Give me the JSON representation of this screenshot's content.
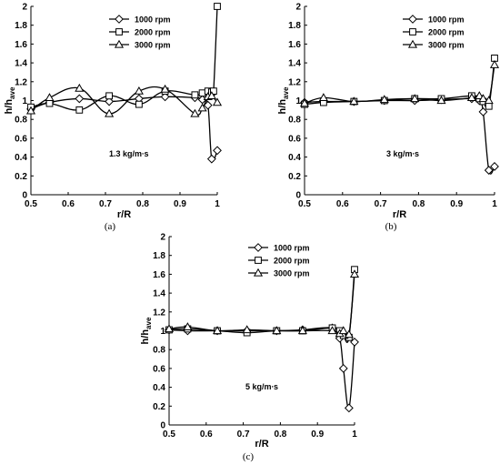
{
  "chart_data": [
    {
      "type": "line",
      "panel_label": "(a)",
      "annotation": "1.3 kg/m∙s",
      "xlabel": "r/R",
      "ylabel_main": "h/h",
      "ylabel_sub": "ave",
      "xlim": [
        0.5,
        1.0
      ],
      "ylim": [
        0,
        2
      ],
      "x_ticks": [
        "0.5",
        "0.6",
        "0.7",
        "0.8",
        "0.9",
        "1"
      ],
      "y_ticks": [
        "0",
        "0.2",
        "0.4",
        "0.6",
        "0.8",
        "1",
        "1.2",
        "1.4",
        "1.6",
        "1.8",
        "2"
      ],
      "legend_position": "top-right",
      "series": [
        {
          "name": "1000 rpm",
          "marker": "diamond",
          "x": [
            0.5,
            0.55,
            0.63,
            0.71,
            0.79,
            0.86,
            0.94,
            0.96,
            0.975,
            0.985,
            1.0
          ],
          "y": [
            0.91,
            0.98,
            1.02,
            0.99,
            1.02,
            1.04,
            1.03,
            1.01,
            0.95,
            0.38,
            0.47
          ]
        },
        {
          "name": "2000 rpm",
          "marker": "square",
          "x": [
            0.5,
            0.55,
            0.63,
            0.71,
            0.79,
            0.86,
            0.94,
            0.96,
            0.975,
            0.985,
            0.99,
            1.0
          ],
          "y": [
            0.93,
            0.97,
            0.9,
            1.05,
            0.96,
            1.1,
            1.06,
            1.08,
            1.1,
            1.09,
            1.1,
            2.0
          ]
        },
        {
          "name": "3000 rpm",
          "marker": "triangle",
          "x": [
            0.5,
            0.55,
            0.63,
            0.71,
            0.79,
            0.86,
            0.94,
            0.96,
            0.975,
            0.985,
            1.0
          ],
          "y": [
            0.89,
            1.03,
            1.13,
            0.86,
            1.1,
            1.12,
            0.86,
            0.92,
            1.04,
            1.05,
            0.98
          ]
        }
      ]
    },
    {
      "type": "line",
      "panel_label": "(b)",
      "annotation": "3 kg/m∙s",
      "xlabel": "r/R",
      "ylabel_main": "h/h",
      "ylabel_sub": "ave",
      "xlim": [
        0.5,
        1.0
      ],
      "ylim": [
        0,
        2
      ],
      "x_ticks": [
        "0.5",
        "0.6",
        "0.7",
        "0.8",
        "0.9",
        "1"
      ],
      "y_ticks": [
        "0",
        "0.2",
        "0.4",
        "0.6",
        "0.8",
        "1",
        "1.2",
        "1.4",
        "1.6",
        "1.8",
        "2"
      ],
      "legend_position": "top-right",
      "series": [
        {
          "name": "1000 rpm",
          "marker": "diamond",
          "x": [
            0.5,
            0.55,
            0.63,
            0.71,
            0.79,
            0.86,
            0.94,
            0.96,
            0.97,
            0.985,
            1.0
          ],
          "y": [
            0.98,
            0.99,
            0.99,
            1.0,
            1.0,
            1.01,
            1.02,
            1.0,
            0.88,
            0.26,
            0.3
          ]
        },
        {
          "name": "2000 rpm",
          "marker": "square",
          "x": [
            0.5,
            0.55,
            0.63,
            0.71,
            0.79,
            0.86,
            0.94,
            0.96,
            0.97,
            0.985,
            1.0
          ],
          "y": [
            0.96,
            0.98,
            0.99,
            1.0,
            1.02,
            1.02,
            1.05,
            1.02,
            0.99,
            0.94,
            1.45
          ]
        },
        {
          "name": "3000 rpm",
          "marker": "triangle",
          "x": [
            0.5,
            0.55,
            0.63,
            0.71,
            0.79,
            0.86,
            0.94,
            0.96,
            0.97,
            0.985,
            1.0
          ],
          "y": [
            0.97,
            1.03,
            0.99,
            1.01,
            1.02,
            1.0,
            1.03,
            1.05,
            1.02,
            1.0,
            1.38
          ]
        }
      ]
    },
    {
      "type": "line",
      "panel_label": "(c)",
      "annotation": "5 kg/m∙s",
      "xlabel": "r/R",
      "ylabel_main": "h/h",
      "ylabel_sub": "ave",
      "xlim": [
        0.5,
        1.0
      ],
      "ylim": [
        0,
        2
      ],
      "x_ticks": [
        "0.5",
        "0.6",
        "0.7",
        "0.8",
        "0.9",
        "1"
      ],
      "y_ticks": [
        "0",
        "0.2",
        "0.4",
        "0.6",
        "0.8",
        "1",
        "1.2",
        "1.4",
        "1.6",
        "1.8",
        "2"
      ],
      "legend_position": "top-right",
      "series": [
        {
          "name": "1000 rpm",
          "marker": "diamond",
          "x": [
            0.5,
            0.55,
            0.63,
            0.71,
            0.79,
            0.86,
            0.94,
            0.96,
            0.97,
            0.985,
            1.0
          ],
          "y": [
            1.01,
            1.0,
            1.0,
            1.0,
            1.0,
            1.01,
            1.03,
            0.92,
            0.6,
            0.18,
            0.88
          ]
        },
        {
          "name": "2000 rpm",
          "marker": "square",
          "x": [
            0.5,
            0.55,
            0.63,
            0.71,
            0.79,
            0.86,
            0.94,
            0.96,
            0.97,
            0.985,
            1.0
          ],
          "y": [
            1.01,
            1.02,
            1.0,
            0.98,
            1.0,
            1.0,
            1.03,
            1.0,
            0.95,
            0.93,
            1.65
          ]
        },
        {
          "name": "3000 rpm",
          "marker": "triangle",
          "x": [
            0.5,
            0.55,
            0.63,
            0.71,
            0.79,
            0.86,
            0.94,
            0.96,
            0.97,
            0.985,
            1.0
          ],
          "y": [
            1.02,
            1.04,
            1.0,
            1.01,
            1.0,
            1.0,
            1.0,
            0.97,
            1.0,
            0.96,
            1.6
          ]
        }
      ]
    }
  ]
}
